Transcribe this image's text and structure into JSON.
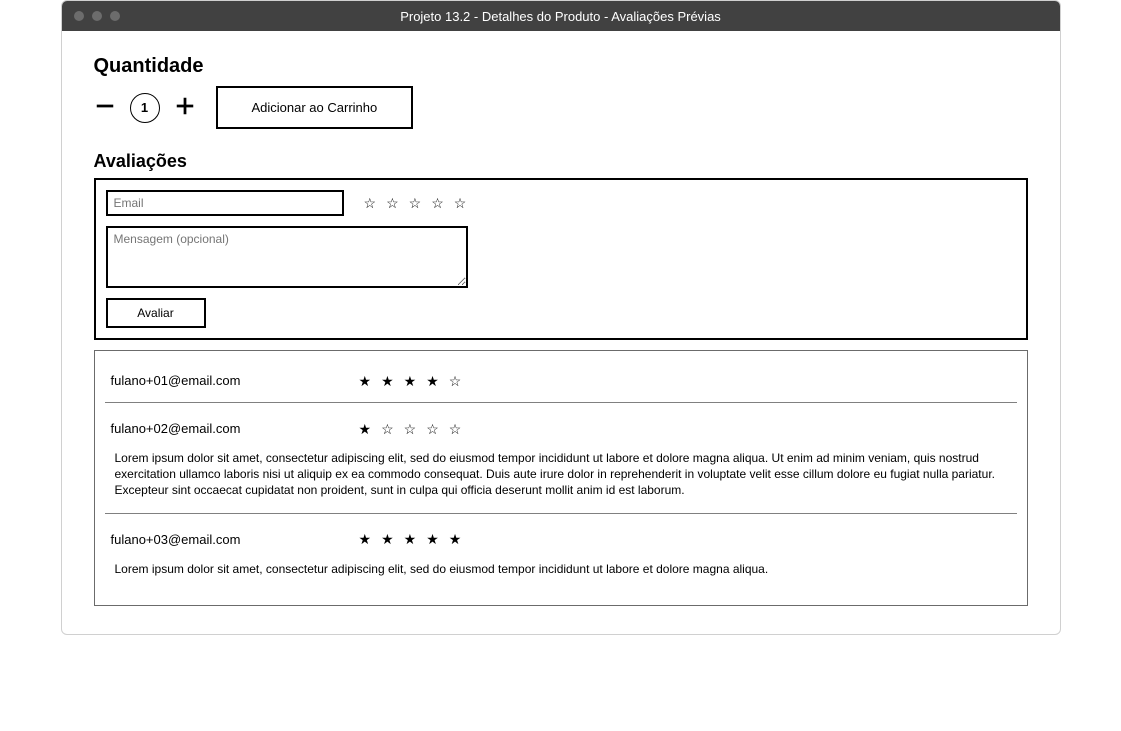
{
  "window": {
    "title": "Projeto 13.2 - Detalhes do Produto - Avaliações Prévias"
  },
  "quantity": {
    "heading": "Quantidade",
    "value": "1",
    "add_to_cart_label": "Adicionar ao Carrinho"
  },
  "reviews": {
    "heading": "Avaliações",
    "form": {
      "email_placeholder": "Email",
      "message_placeholder": "Mensagem (opcional)",
      "submit_label": "Avaliar",
      "rating_selected": 0,
      "max_stars": 5
    },
    "items": [
      {
        "email": "fulano+01@email.com",
        "rating": 4,
        "message": ""
      },
      {
        "email": "fulano+02@email.com",
        "rating": 1,
        "message": "Lorem ipsum dolor sit amet, consectetur adipiscing elit, sed do eiusmod tempor incididunt ut labore et dolore magna aliqua. Ut enim ad minim veniam, quis nostrud exercitation ullamco laboris nisi ut aliquip ex ea commodo consequat. Duis aute irure dolor in reprehenderit in voluptate velit esse cillum dolore eu fugiat nulla pariatur. Excepteur sint occaecat cupidatat non proident, sunt in culpa qui officia deserunt mollit anim id est laborum."
      },
      {
        "email": "fulano+03@email.com",
        "rating": 5,
        "message": "Lorem ipsum dolor sit amet, consectetur adipiscing elit, sed do eiusmod tempor incididunt ut labore et dolore magna aliqua."
      }
    ]
  },
  "colors": {
    "titlebar_bg": "#414141",
    "titlebar_text": "#ffffff",
    "border_strong": "#000000",
    "border_light": "#6b6b6b"
  }
}
